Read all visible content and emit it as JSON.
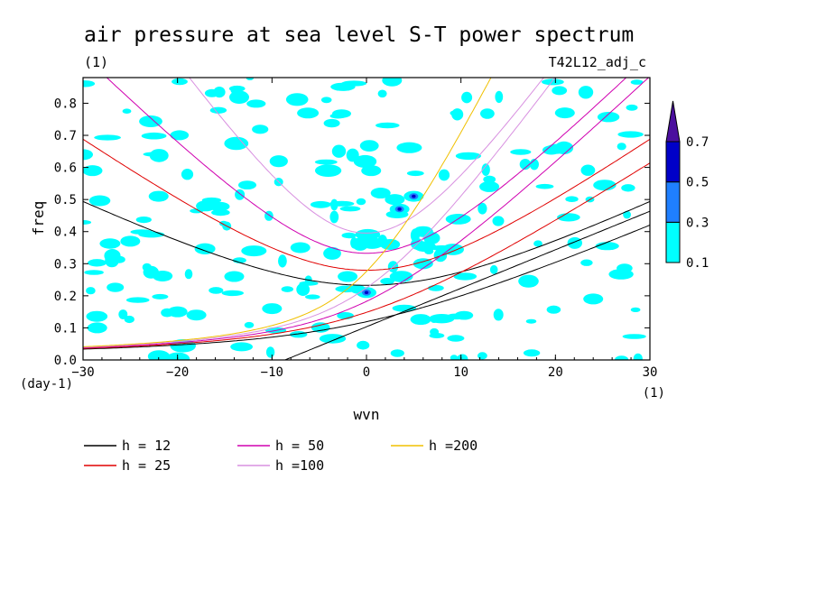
{
  "title": "air pressure at sea level S-T power spectrum",
  "subtitle_left": "(1)",
  "subtitle_right": "T42L12_adj_c",
  "chart_data": {
    "type": "heatmap",
    "title": "air pressure at sea level S-T power spectrum",
    "xlabel": "wvn",
    "ylabel": "freq",
    "x_unit_label": "(1)",
    "y_unit_label": "(day-1)",
    "xlim": [
      -30,
      30
    ],
    "ylim": [
      0,
      0.88
    ],
    "xticks": [
      -30,
      -20,
      -10,
      0,
      10,
      20,
      30
    ],
    "yticks": [
      0.0,
      0.1,
      0.2,
      0.3,
      0.4,
      0.5,
      0.6,
      0.7,
      0.8
    ],
    "colorbar": {
      "levels": [
        0.1,
        0.3,
        0.5,
        0.7
      ],
      "colors": [
        "#00ffff",
        "#1f7fff",
        "#0000c8",
        "#4b0f9e"
      ],
      "extend": "max"
    },
    "contour_patches": [
      {
        "x": -29,
        "y": 0.59,
        "level": 1
      },
      {
        "x": -28.5,
        "y": 0.1,
        "level": 1
      },
      {
        "x": -25,
        "y": 0.37,
        "level": 1
      },
      {
        "x": -22,
        "y": 0.51,
        "level": 1
      },
      {
        "x": -20,
        "y": 0.15,
        "level": 1
      },
      {
        "x": -18,
        "y": 0.14,
        "level": 1
      },
      {
        "x": -17,
        "y": 0.48,
        "level": 1
      },
      {
        "x": -14,
        "y": 0.26,
        "level": 1
      },
      {
        "x": -10,
        "y": 0.16,
        "level": 1
      },
      {
        "x": -7,
        "y": 0.35,
        "level": 1
      },
      {
        "x": 0,
        "y": 0.21,
        "level": 2
      },
      {
        "x": -2,
        "y": 0.26,
        "level": 1
      },
      {
        "x": 0.5,
        "y": 0.59,
        "level": 1
      },
      {
        "x": 1.5,
        "y": 0.52,
        "level": 1
      },
      {
        "x": 3,
        "y": 0.5,
        "level": 1
      },
      {
        "x": 3.5,
        "y": 0.47,
        "level": 2
      },
      {
        "x": 5,
        "y": 0.51,
        "level": 2
      },
      {
        "x": 2.5,
        "y": 0.36,
        "level": 1
      },
      {
        "x": 6,
        "y": 0.4,
        "level": 1
      },
      {
        "x": 6,
        "y": 0.3,
        "level": 1
      },
      {
        "x": 13,
        "y": 0.54,
        "level": 1
      },
      {
        "x": 21,
        "y": 0.77,
        "level": 1
      },
      {
        "x": 24,
        "y": 0.19,
        "level": 1
      },
      {
        "x": -30,
        "y": 0.64,
        "level": 1
      }
    ],
    "dispersion_curves": [
      {
        "name": "h = 12",
        "color": "#000000"
      },
      {
        "name": "h = 25",
        "color": "#e00000"
      },
      {
        "name": "h = 50",
        "color": "#d000b0"
      },
      {
        "name": "h =100",
        "color": "#d890e0"
      },
      {
        "name": "h =200",
        "color": "#f0c000"
      }
    ]
  },
  "legend": [
    {
      "label": "h = 12",
      "color": "#000000"
    },
    {
      "label": "h = 50",
      "color": "#d000b0"
    },
    {
      "label": "h =200",
      "color": "#f0c000"
    },
    {
      "label": "h = 25",
      "color": "#e00000"
    },
    {
      "label": "h =100",
      "color": "#d890e0"
    }
  ]
}
